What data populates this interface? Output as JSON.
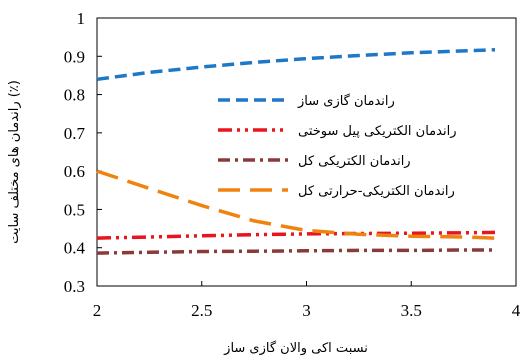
{
  "chart_data": {
    "type": "line",
    "xlabel": "نسبت اکی والان گازی ساز",
    "ylabel": "راندمان های مختلف سایت (٪)",
    "xlim": [
      2,
      4
    ],
    "ylim": [
      0.3,
      1
    ],
    "x_ticks": [
      2,
      2.5,
      3,
      3.5,
      4
    ],
    "x_tick_labels": [
      "2",
      "2.5",
      "3",
      "3.5",
      "4"
    ],
    "y_ticks": [
      0.3,
      0.4,
      0.5,
      0.6,
      0.7,
      0.8,
      0.9,
      1
    ],
    "y_tick_labels": [
      "0.3",
      "0.4",
      "0.5",
      "0.6",
      "0.7",
      "0.8",
      "0.9",
      "1"
    ],
    "grid": false,
    "legend_position": "right-middle",
    "x": [
      2,
      2.25,
      2.5,
      2.75,
      3,
      3.25,
      3.5,
      3.75,
      3.9
    ],
    "series": [
      {
        "name": "راندمان گازی ساز",
        "color": "#1f77c8",
        "dash": "dash",
        "values": [
          0.84,
          0.858,
          0.872,
          0.884,
          0.894,
          0.902,
          0.909,
          0.914,
          0.917
        ]
      },
      {
        "name": "راندمان الکتریکی پیل سوختی",
        "color": "#e8141e",
        "dash": "dash-dot-dot",
        "values": [
          0.425,
          0.428,
          0.431,
          0.434,
          0.436,
          0.437,
          0.438,
          0.439,
          0.44
        ]
      },
      {
        "name": "راندمان الکتریکی کل",
        "color": "#8b3a3a",
        "dash": "dash-dot",
        "values": [
          0.386,
          0.388,
          0.39,
          0.391,
          0.392,
          0.393,
          0.393,
          0.394,
          0.394
        ]
      },
      {
        "name": "راندمان الکتریکی-حرارتی کل",
        "color": "#f0820f",
        "dash": "long-dash",
        "values": [
          0.6,
          0.555,
          0.51,
          0.47,
          0.445,
          0.435,
          0.43,
          0.428,
          0.425
        ]
      }
    ]
  }
}
